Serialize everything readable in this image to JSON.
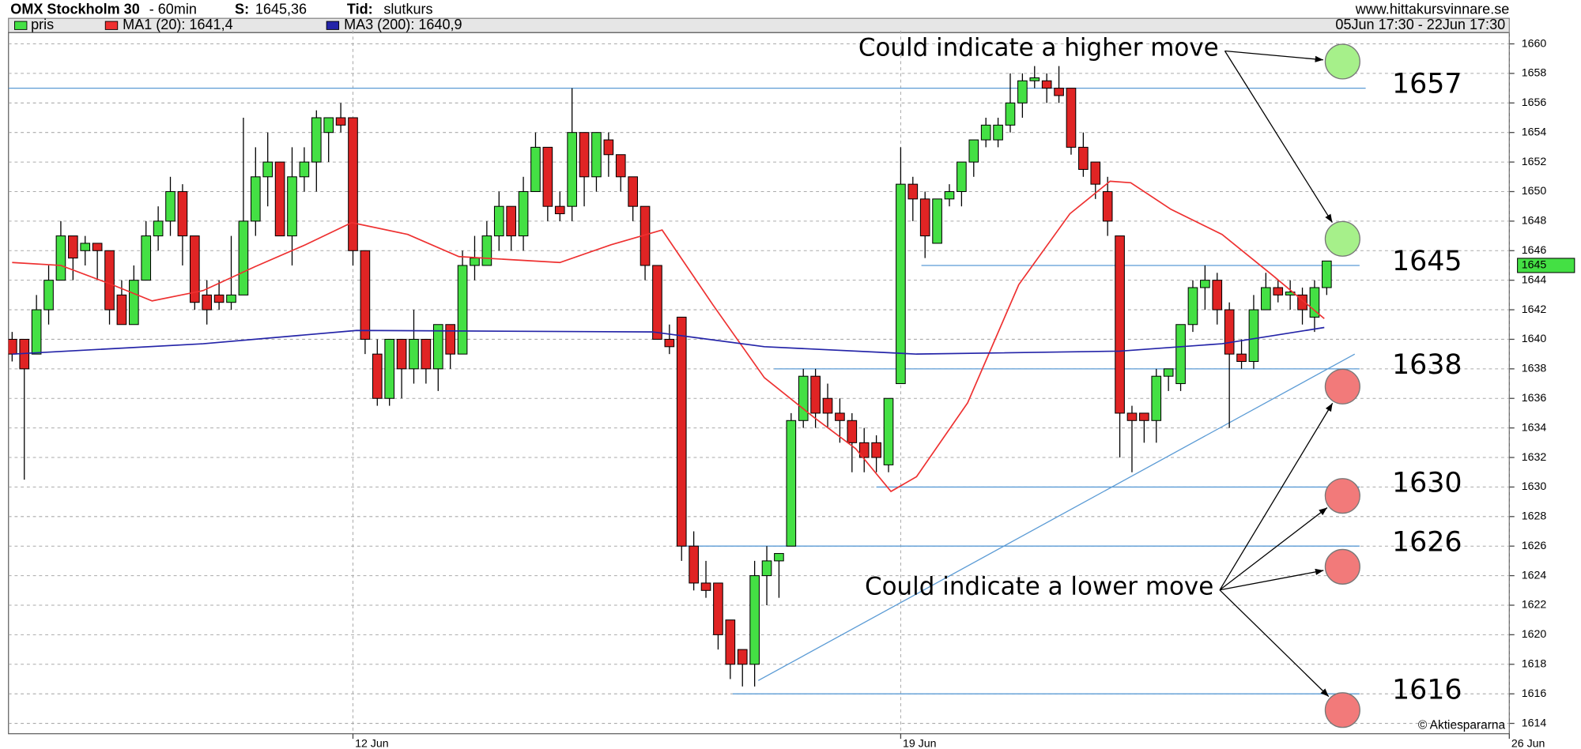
{
  "chart_data": {
    "type": "candlestick",
    "title": "OMX Stockholm 30",
    "interval": "- 60min",
    "last_label": "S:",
    "last": "1645,36",
    "time_label": "Tid:",
    "time": "slutkurs",
    "source": "www.hittakursvinnare.se",
    "date_range": "05Jun 17:30 - 22Jun 17:30",
    "credit": "© Aktiespararna",
    "price_tag": 1645,
    "ylim": [
      1613.3,
      1660.9
    ],
    "yticks": [
      1614,
      1616,
      1618,
      1620,
      1622,
      1624,
      1626,
      1628,
      1630,
      1632,
      1634,
      1636,
      1638,
      1640,
      1642,
      1644,
      1646,
      1648,
      1650,
      1652,
      1654,
      1656,
      1658,
      1660
    ],
    "xlim": [
      -0.3,
      123
    ],
    "xticks": [
      {
        "value": 28,
        "label": "12 Jun"
      },
      {
        "value": 73,
        "label": "19 Jun"
      },
      {
        "value": 123,
        "label": "26 Jun"
      }
    ],
    "grid": true,
    "series": [
      {
        "name": "pris",
        "up_color": "#44e044",
        "down_color": "#e02424",
        "open": [
          1640,
          1640,
          1639,
          1642,
          1644,
          1647,
          1646,
          1646.5,
          1646,
          1643,
          1641,
          1644,
          1647,
          1648,
          1650,
          1647,
          1643,
          1643,
          1642.5,
          1643,
          1648,
          1651,
          1652,
          1647,
          1651,
          1652,
          1654,
          1655,
          1655,
          1646,
          1639,
          1636,
          1640,
          1638,
          1640,
          1638,
          1641,
          1639,
          1645,
          1645,
          1647,
          1649,
          1647,
          1650,
          1653,
          1649,
          1649,
          1654,
          1651,
          1653.5,
          1652.5,
          1651,
          1649,
          1645,
          1640,
          1641.5,
          1626,
          1623.5,
          1623.5,
          1621,
          1619,
          1618,
          1624,
          1625,
          1626,
          1634.5,
          1637.5,
          1636,
          1635,
          1634.5,
          1633,
          1633,
          1631.5,
          1637,
          1650.5,
          1649.5,
          1646.5,
          1649.5,
          1650,
          1652,
          1653.5,
          1653.5,
          1654.5,
          1656,
          1657.5,
          1657.5,
          1657,
          1657,
          1653,
          1652,
          1650,
          1647,
          1635,
          1635,
          1634.5,
          1637.5,
          1637,
          1641,
          1643.5,
          1644,
          1642,
          1639,
          1638.5,
          1642,
          1643.5,
          1643,
          1643,
          1641.5,
          1643.5
        ],
        "high": [
          1640.5,
          1640,
          1643,
          1645,
          1648,
          1647,
          1647,
          1646.5,
          1646,
          1644,
          1645,
          1648,
          1649,
          1651,
          1650.5,
          1647,
          1644,
          1644,
          1647,
          1655,
          1653,
          1654,
          1652,
          1653,
          1653,
          1655.5,
          1655,
          1656,
          1655,
          1646,
          1640,
          1640,
          1640,
          1642,
          1640,
          1641,
          1641,
          1646,
          1647,
          1648,
          1650,
          1649,
          1651,
          1654,
          1653,
          1650,
          1657,
          1654,
          1654,
          1654,
          1652.5,
          1651,
          1649,
          1645,
          1641,
          1641.5,
          1627,
          1625,
          1623.5,
          1621,
          1619,
          1625,
          1626,
          1625.5,
          1635,
          1638,
          1638,
          1637,
          1636,
          1635,
          1634,
          1633.5,
          1636,
          1653,
          1651,
          1650,
          1649.5,
          1650.5,
          1652,
          1653.5,
          1655,
          1655,
          1658,
          1658,
          1658.5,
          1658,
          1658.5,
          1657,
          1654,
          1652,
          1651,
          1647,
          1635.5,
          1635,
          1638,
          1638,
          1641,
          1644,
          1645,
          1644.5,
          1642.5,
          1640,
          1643,
          1644.5,
          1644,
          1644,
          1643.5,
          1644,
          1645.3
        ],
        "low": [
          1638.5,
          1630.5,
          1639,
          1641,
          1644,
          1644,
          1645,
          1644,
          1641,
          1641,
          1641,
          1644,
          1646,
          1647,
          1645,
          1642,
          1641,
          1642,
          1642,
          1643,
          1647,
          1649,
          1647,
          1645,
          1650,
          1650,
          1652,
          1654,
          1645,
          1639,
          1635.5,
          1635.5,
          1636,
          1637,
          1637,
          1636.5,
          1638,
          1639,
          1644,
          1645,
          1646,
          1646,
          1646,
          1650,
          1648,
          1648,
          1648,
          1649,
          1650,
          1651,
          1650,
          1648,
          1644,
          1640,
          1639,
          1625,
          1623,
          1622.5,
          1619,
          1617,
          1616.5,
          1616.5,
          1622,
          1622.5,
          1626,
          1634,
          1634,
          1634,
          1633,
          1631,
          1631,
          1631,
          1631,
          1637,
          1648,
          1645.5,
          1646.5,
          1649,
          1649,
          1651,
          1653,
          1653,
          1654,
          1655,
          1657,
          1656,
          1656,
          1652.5,
          1651,
          1649.5,
          1647,
          1632,
          1631,
          1633,
          1633,
          1636.5,
          1636.5,
          1640.5,
          1642,
          1641,
          1634,
          1638,
          1638,
          1642,
          1642.5,
          1642,
          1641,
          1640.5,
          1643
        ],
        "close": [
          1639,
          1638,
          1642,
          1644,
          1647,
          1645.5,
          1646.5,
          1646,
          1642,
          1641,
          1644,
          1647,
          1648,
          1650,
          1647,
          1642.5,
          1642,
          1642.5,
          1643,
          1648,
          1651,
          1652,
          1647,
          1651,
          1652,
          1655,
          1655,
          1654.5,
          1646,
          1640,
          1636,
          1640,
          1638,
          1640,
          1638,
          1641,
          1639,
          1645,
          1645.5,
          1647,
          1649,
          1647,
          1650,
          1653,
          1649,
          1648.5,
          1654,
          1651,
          1654,
          1652.5,
          1651,
          1649,
          1645,
          1640,
          1639.5,
          1626,
          1623.5,
          1623,
          1620,
          1618,
          1618,
          1624,
          1625,
          1625.5,
          1634.5,
          1637.5,
          1635,
          1635,
          1634.5,
          1633,
          1632,
          1632,
          1636,
          1650.5,
          1649.5,
          1647,
          1649.5,
          1650,
          1652,
          1653.5,
          1654.5,
          1654.5,
          1656,
          1657.5,
          1657.7,
          1657,
          1656.5,
          1653,
          1651.5,
          1650.5,
          1648,
          1635,
          1634.5,
          1634.5,
          1637.5,
          1638,
          1641,
          1643.5,
          1644,
          1642,
          1639,
          1638.5,
          1642,
          1643.5,
          1643,
          1643.2,
          1642,
          1643.5,
          1645.3
        ]
      },
      {
        "name": "MA1 (20): 1641,4",
        "color": "#ee3030",
        "x": [
          0,
          4,
          8.2,
          11.5,
          15.7,
          19.9,
          24.1,
          27.9,
          32.5,
          36.7,
          40.8,
          45,
          49.2,
          53.4,
          57.6,
          61.8,
          65.9,
          69.3,
          72.2,
          74.3,
          78.5,
          82.7,
          86.9,
          90.2,
          91.9,
          95.2,
          99.4,
          103.6,
          107.8
        ],
        "values": [
          1645.2,
          1645,
          1643.7,
          1642.6,
          1643.3,
          1644.9,
          1646.4,
          1647.9,
          1647.1,
          1645.6,
          1645.4,
          1645.2,
          1646.4,
          1647.4,
          1642.3,
          1637.4,
          1634.7,
          1632.6,
          1629.7,
          1630.7,
          1635.7,
          1643.7,
          1648.5,
          1650.7,
          1650.6,
          1648.8,
          1647.1,
          1644.3,
          1641.4
        ]
      },
      {
        "name": "MA3 (200): 1640,9",
        "color": "#2424a8",
        "x": [
          0,
          15.7,
          28.3,
          52.6,
          61.8,
          74.3,
          91,
          99.4,
          107.8
        ],
        "values": [
          1639,
          1639.7,
          1640.6,
          1640.5,
          1639.5,
          1639,
          1639.2,
          1639.7,
          1640.8
        ]
      }
    ],
    "levels": [
      {
        "value": 1657,
        "from": -0.3,
        "to": 111.2
      },
      {
        "value": 1645,
        "from": 74.7,
        "to": 110.7
      },
      {
        "value": 1638,
        "from": 62.6,
        "to": 110.7
      },
      {
        "value": 1630,
        "from": 71,
        "to": 110.7
      },
      {
        "value": 1626,
        "from": 55,
        "to": 110.7
      },
      {
        "value": 1616,
        "from": 59.2,
        "to": 110.7
      }
    ],
    "trendline": {
      "x": [
        61.3,
        110.3
      ],
      "values": [
        1616.9,
        1639
      ]
    },
    "annotations": [
      {
        "text": "Could indicate a higher move",
        "signals": [
          {
            "x": 109.3,
            "value": 1658.8,
            "color": "#a6f08a"
          },
          {
            "x": 109.3,
            "value": 1646.8,
            "color": "#a6f08a"
          }
        ]
      },
      {
        "text": "Could indicate a lower move",
        "signals": [
          {
            "x": 109.3,
            "value": 1636.8,
            "color": "#f27a7a"
          },
          {
            "x": 109.3,
            "value": 1629.4,
            "color": "#f27a7a"
          },
          {
            "x": 109.3,
            "value": 1624.6,
            "color": "#f27a7a"
          },
          {
            "x": 109.3,
            "value": 1614.9,
            "color": "#f27a7a"
          }
        ]
      }
    ]
  }
}
